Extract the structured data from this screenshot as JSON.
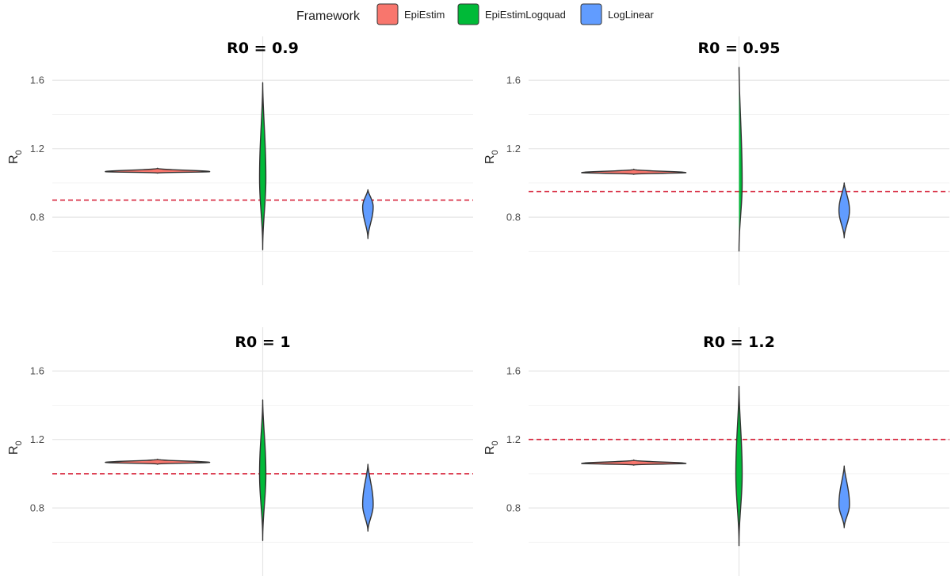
{
  "legend": {
    "title": "Framework",
    "items": [
      {
        "label": "EpiEstim",
        "color": "#F8766D"
      },
      {
        "label": "EpiEstimLogquad",
        "color": "#00BA38"
      },
      {
        "label": "LogLinear",
        "color": "#619CFF"
      }
    ]
  },
  "colors": {
    "reference_line": "#d7263d",
    "outline": "#333333",
    "grid_major": "#e6e6e6",
    "grid_minor": "#f3f3f3"
  },
  "chart_data": [
    {
      "type": "violin",
      "title": "R0 = 0.9",
      "ylabel_main": "R",
      "ylabel_sub": "0",
      "ylim": [
        0.56,
        1.8
      ],
      "yticks": [
        "0.8",
        "1.2",
        "1.6"
      ],
      "grid": true,
      "reference_line": 0.9,
      "series": [
        {
          "name": "EpiEstim",
          "median": 1.066,
          "min": 1.057,
          "max": 1.086
        },
        {
          "name": "EpiEstimLogquad",
          "median": 1.03,
          "min": 0.61,
          "max": 1.585
        },
        {
          "name": "LogLinear",
          "median": 0.86,
          "min": 0.675,
          "max": 0.96
        }
      ]
    },
    {
      "type": "violin",
      "title": "R0 = 0.95",
      "ylabel_main": "R",
      "ylabel_sub": "0",
      "ylim": [
        0.56,
        1.8
      ],
      "yticks": [
        "0.8",
        "1.2",
        "1.6"
      ],
      "grid": true,
      "reference_line": 0.95,
      "series": [
        {
          "name": "EpiEstim",
          "median": 1.06,
          "min": 1.05,
          "max": 1.08
        },
        {
          "name": "EpiEstimLogquad",
          "median": 1.0,
          "min": 0.6,
          "max": 1.7
        },
        {
          "name": "LogLinear",
          "median": 0.84,
          "min": 0.68,
          "max": 1.0
        }
      ]
    },
    {
      "type": "violin",
      "title": "R0 = 1",
      "ylabel_main": "R",
      "ylabel_sub": "0",
      "ylim": [
        0.56,
        1.8
      ],
      "yticks": [
        "0.8",
        "1.2",
        "1.6"
      ],
      "grid": true,
      "reference_line": 1.0,
      "series": [
        {
          "name": "EpiEstim",
          "median": 1.066,
          "min": 1.055,
          "max": 1.085
        },
        {
          "name": "EpiEstimLogquad",
          "median": 1.0,
          "min": 0.61,
          "max": 1.43
        },
        {
          "name": "LogLinear",
          "median": 0.82,
          "min": 0.665,
          "max": 1.055
        }
      ]
    },
    {
      "type": "violin",
      "title": "R0 = 1.2",
      "ylabel_main": "R",
      "ylabel_sub": "0",
      "ylim": [
        0.56,
        1.8
      ],
      "yticks": [
        "0.8",
        "1.2",
        "1.6"
      ],
      "grid": true,
      "reference_line": 1.2,
      "series": [
        {
          "name": "EpiEstim",
          "median": 1.06,
          "min": 1.05,
          "max": 1.08
        },
        {
          "name": "EpiEstimLogquad",
          "median": 1.0,
          "min": 0.58,
          "max": 1.51
        },
        {
          "name": "LogLinear",
          "median": 0.82,
          "min": 0.685,
          "max": 1.045
        }
      ]
    }
  ]
}
